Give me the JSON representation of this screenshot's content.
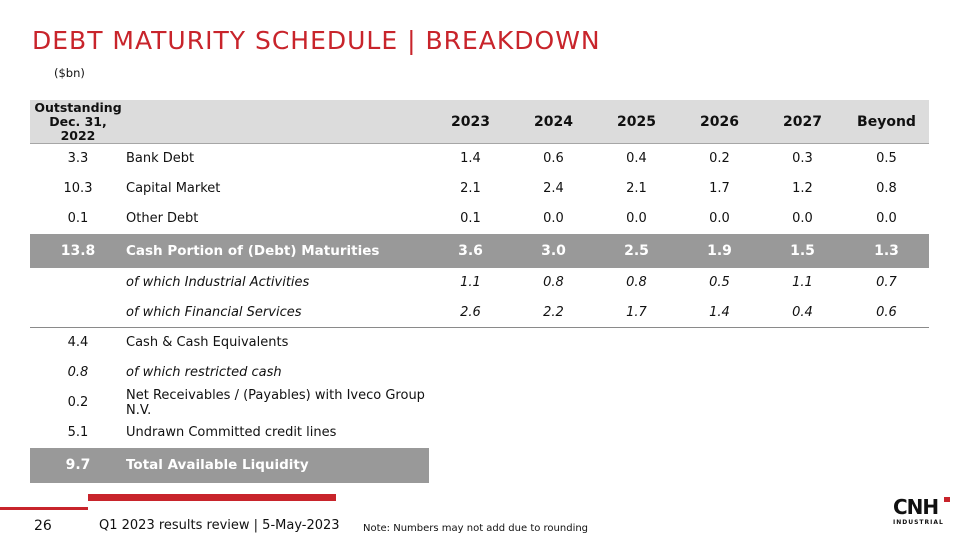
{
  "title": "DEBT MATURITY SCHEDULE | BREAKDOWN",
  "unit": "($bn)",
  "header": {
    "outstanding_line1": "Outstanding",
    "outstanding_line2": "Dec. 31, 2022",
    "years": [
      "2023",
      "2024",
      "2025",
      "2026",
      "2027",
      "Beyond"
    ]
  },
  "rows": [
    {
      "outstanding": "3.3",
      "label": "Bank Debt",
      "values": [
        "1.4",
        "0.6",
        "0.4",
        "0.2",
        "0.3",
        "0.5"
      ]
    },
    {
      "outstanding": "10.3",
      "label": "Capital Market",
      "values": [
        "2.1",
        "2.4",
        "2.1",
        "1.7",
        "1.2",
        "0.8"
      ]
    },
    {
      "outstanding": "0.1",
      "label": "Other Debt",
      "values": [
        "0.1",
        "0.0",
        "0.0",
        "0.0",
        "0.0",
        "0.0"
      ]
    }
  ],
  "total_row": {
    "outstanding": "13.8",
    "label": "Cash Portion of (Debt) Maturities",
    "values": [
      "3.6",
      "3.0",
      "2.5",
      "1.9",
      "1.5",
      "1.3"
    ]
  },
  "sub_rows": [
    {
      "label": "of which Industrial Activities",
      "values": [
        "1.1",
        "0.8",
        "0.8",
        "0.5",
        "1.1",
        "0.7"
      ]
    },
    {
      "label": "of which Financial Services",
      "values": [
        "2.6",
        "2.2",
        "1.7",
        "1.4",
        "0.4",
        "0.6"
      ]
    }
  ],
  "liquidity_rows": [
    {
      "outstanding": "4.4",
      "label": "Cash & Cash Equivalents"
    },
    {
      "outstanding": "0.8",
      "label": "of which restricted cash"
    },
    {
      "outstanding": "0.2",
      "label": "Net Receivables / (Payables) with Iveco Group N.V."
    },
    {
      "outstanding": "5.1",
      "label": "Undrawn Committed credit lines"
    }
  ],
  "liquidity_total": {
    "outstanding": "9.7",
    "label": "Total Available Liquidity"
  },
  "footer": {
    "page_number": "26",
    "text": "Q1 2023 results review | 5-May-2023",
    "note": "Note: Numbers may not add due to rounding"
  },
  "logo": {
    "mark": "CNH",
    "sub": "INDUSTRIAL"
  },
  "colors": {
    "accent": "#c8242b",
    "header_bg": "#dcdcdc",
    "total_bg": "#999999"
  }
}
